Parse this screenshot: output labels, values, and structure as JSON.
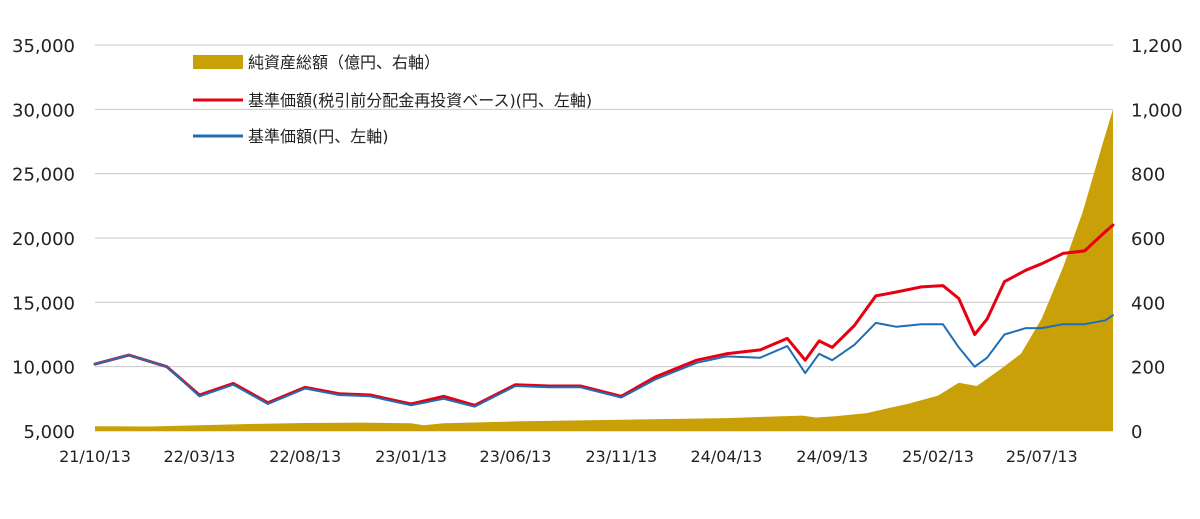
{
  "chart_data": {
    "type": "line+area",
    "title": "",
    "x_ticks": [
      "21/10/13",
      "22/03/13",
      "22/08/13",
      "23/01/13",
      "23/06/13",
      "23/11/13",
      "24/04/13",
      "24/09/13",
      "25/02/13",
      "25/07/13"
    ],
    "y_left": {
      "range": [
        5000,
        35000
      ],
      "ticks": [
        "5,000",
        "10,000",
        "15,000",
        "20,000",
        "25,000",
        "30,000",
        "35,000"
      ]
    },
    "y_right": {
      "range": [
        0,
        1200
      ],
      "ticks": [
        "0",
        "200",
        "400",
        "600",
        "800",
        "1,000",
        "1,200"
      ]
    },
    "grid": true,
    "legend_position": "top-left",
    "legend": [
      {
        "label": "純資産総額（億円、右軸）",
        "color": "#c9a008",
        "kind": "area"
      },
      {
        "label": "基準価額(税引前分配金再投資ベース)(円、左軸)",
        "color": "#e60012",
        "kind": "line"
      },
      {
        "label": "基準価額(円、左軸)",
        "color": "#1f6eb5",
        "kind": "line"
      }
    ],
    "series": [
      {
        "name": "純資産総額（億円、右軸）",
        "axis": "right",
        "x": [
          "2021-10-13",
          "2022-01-01",
          "2022-03-13",
          "2022-06-01",
          "2022-08-13",
          "2022-11-01",
          "2023-01-13",
          "2023-01-31",
          "2023-03-01",
          "2023-06-13",
          "2023-11-13",
          "2024-04-13",
          "2024-08-01",
          "2024-08-20",
          "2024-09-13",
          "2024-11-01",
          "2024-12-01",
          "2025-01-01",
          "2025-02-13",
          "2025-03-15",
          "2025-04-10",
          "2025-05-13",
          "2025-06-13",
          "2025-07-13",
          "2025-08-13",
          "2025-09-10",
          "2025-10-10",
          "2025-10-24"
        ],
        "values": [
          15,
          14,
          18,
          22,
          25,
          26,
          24,
          18,
          24,
          30,
          35,
          40,
          48,
          42,
          45,
          55,
          70,
          85,
          110,
          150,
          140,
          190,
          240,
          350,
          510,
          680,
          900,
          1000
        ]
      },
      {
        "name": "基準価額(税引前分配金再投資ベース)(円、左軸)",
        "axis": "left",
        "x": [
          "2021-10-13",
          "2021-12-01",
          "2022-01-25",
          "2022-03-13",
          "2022-05-01",
          "2022-06-20",
          "2022-08-13",
          "2022-10-01",
          "2022-11-15",
          "2023-01-13",
          "2023-03-01",
          "2023-04-15",
          "2023-06-13",
          "2023-08-01",
          "2023-09-15",
          "2023-11-13",
          "2024-01-01",
          "2024-03-01",
          "2024-04-13",
          "2024-06-01",
          "2024-07-10",
          "2024-08-05",
          "2024-08-25",
          "2024-09-13",
          "2024-10-15",
          "2024-11-15",
          "2024-12-15",
          "2025-01-20",
          "2025-02-20",
          "2025-03-15",
          "2025-04-07",
          "2025-04-25",
          "2025-05-20",
          "2025-06-20",
          "2025-07-13",
          "2025-08-13",
          "2025-09-13",
          "2025-10-13",
          "2025-10-24"
        ],
        "values": [
          10200,
          10900,
          10000,
          7800,
          8700,
          7200,
          8400,
          7900,
          7800,
          7100,
          7700,
          7000,
          8600,
          8500,
          8500,
          7700,
          9200,
          10500,
          11000,
          11300,
          12200,
          10500,
          12000,
          11500,
          13200,
          15500,
          15800,
          16200,
          16300,
          15300,
          12500,
          13700,
          16600,
          17500,
          18000,
          18800,
          19000,
          20500,
          21000
        ]
      },
      {
        "name": "基準価額(円、左軸)",
        "axis": "left",
        "x": [
          "2021-10-13",
          "2021-12-01",
          "2022-01-25",
          "2022-03-13",
          "2022-05-01",
          "2022-06-20",
          "2022-08-13",
          "2022-10-01",
          "2022-11-15",
          "2023-01-13",
          "2023-03-01",
          "2023-04-15",
          "2023-06-13",
          "2023-08-01",
          "2023-09-15",
          "2023-11-13",
          "2024-01-01",
          "2024-03-01",
          "2024-04-13",
          "2024-06-01",
          "2024-07-10",
          "2024-08-05",
          "2024-08-25",
          "2024-09-13",
          "2024-10-15",
          "2024-11-15",
          "2024-12-15",
          "2025-01-20",
          "2025-02-20",
          "2025-03-15",
          "2025-04-07",
          "2025-04-25",
          "2025-05-20",
          "2025-06-20",
          "2025-07-13",
          "2025-08-13",
          "2025-09-13",
          "2025-10-13",
          "2025-10-24"
        ],
        "values": [
          10200,
          10900,
          10000,
          7700,
          8600,
          7100,
          8300,
          7800,
          7700,
          7000,
          7500,
          6900,
          8500,
          8400,
          8400,
          7600,
          9000,
          10300,
          10800,
          10700,
          11600,
          9500,
          11000,
          10500,
          11700,
          13400,
          13100,
          13300,
          13300,
          11500,
          10000,
          10700,
          12500,
          13000,
          13000,
          13300,
          13300,
          13600,
          14000
        ]
      }
    ]
  }
}
